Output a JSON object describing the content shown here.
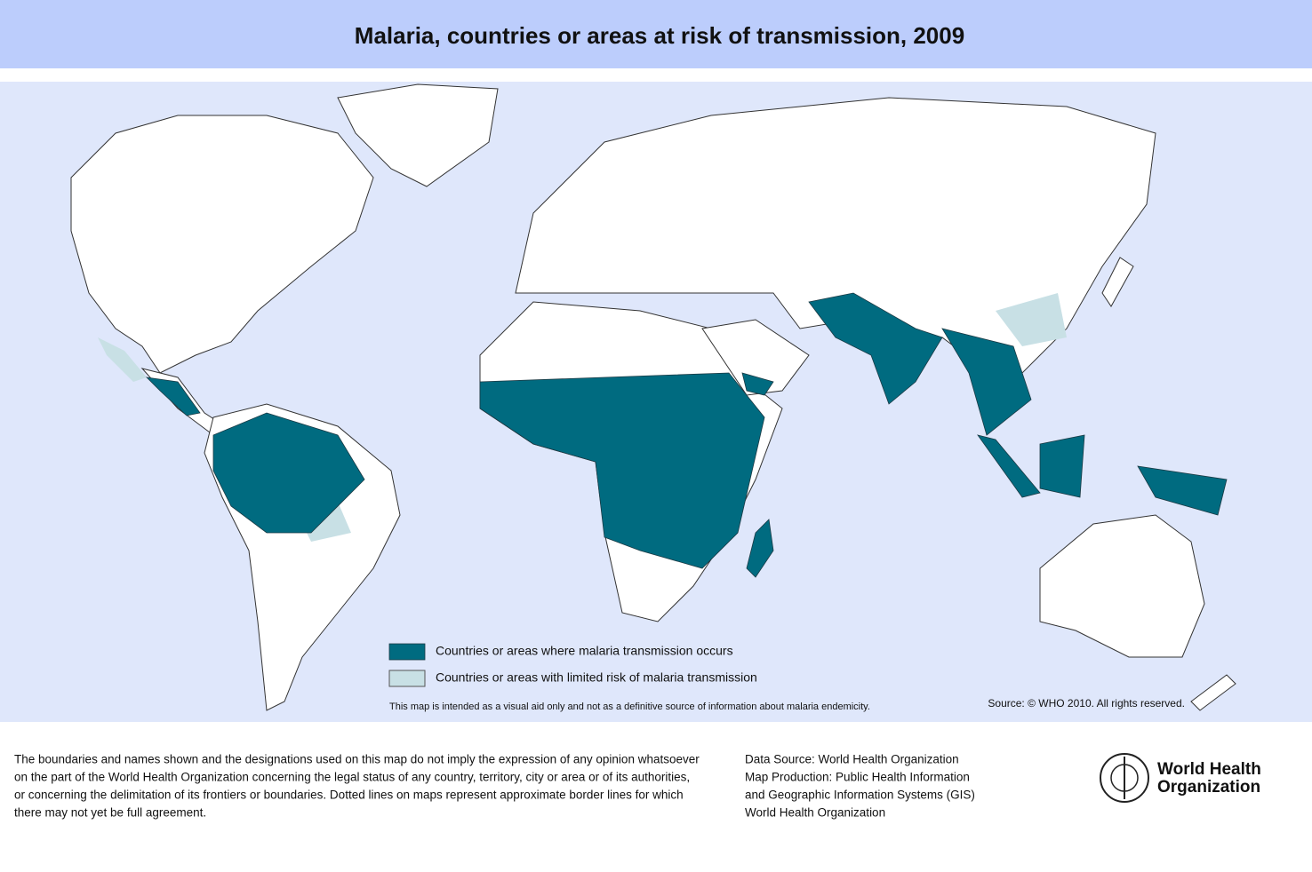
{
  "header": {
    "title": "Malaria, countries or areas at risk of transmission, 2009"
  },
  "legend": {
    "items": [
      "Countries or areas where malaria transmission occurs",
      "Countries or areas with limited risk of malaria transmission"
    ]
  },
  "map_note": "This map is intended as a visual aid only and not as a definitive source of information about malaria endemicity.",
  "map_source": "Source: © WHO 2010. All rights reserved.",
  "footer": {
    "disclaimer": [
      "The boundaries and names shown and the designations used on this map do not imply the expression of any opinion whatsoever",
      "on the part of the World Health Organization concerning the legal status of any country, territory, city or area or of its authorities,",
      "or concerning the delimitation of its frontiers or boundaries.  Dotted lines on maps represent approximate border lines for which",
      "there may not yet be full agreement."
    ],
    "credits": [
      "Data Source: World Health Organization",
      "Map Production: Public Health Information",
      "and Geographic Information Systems (GIS)",
      "World Health Organization"
    ],
    "logo": [
      "World Health",
      "Organization"
    ]
  }
}
